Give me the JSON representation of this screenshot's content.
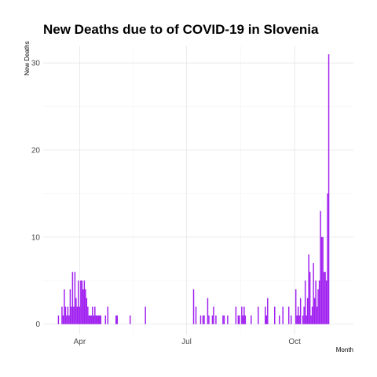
{
  "chart_data": {
    "type": "bar",
    "title": "New Deaths due to of COVID-19 in Slovenia",
    "xlabel": "Month",
    "ylabel": "New Deaths",
    "x_axis": "date",
    "xlim": [
      "2020-03-01",
      "2020-11-20"
    ],
    "ylim": [
      -1.2,
      32
    ],
    "x_ticks": [
      {
        "date": "2020-04-01",
        "label": "Apr"
      },
      {
        "date": "2020-07-01",
        "label": "Jul"
      },
      {
        "date": "2020-10-01",
        "label": "Oct"
      }
    ],
    "y_ticks": [
      0,
      10,
      20,
      30
    ],
    "grid": true,
    "bar_color": "#a020f0",
    "series": [
      {
        "points": [
          [
            "2020-03-14",
            1
          ],
          [
            "2020-03-17",
            2
          ],
          [
            "2020-03-18",
            1
          ],
          [
            "2020-03-19",
            4
          ],
          [
            "2020-03-20",
            2
          ],
          [
            "2020-03-21",
            1
          ],
          [
            "2020-03-22",
            2
          ],
          [
            "2020-03-23",
            1
          ],
          [
            "2020-03-24",
            4
          ],
          [
            "2020-03-25",
            2
          ],
          [
            "2020-03-26",
            6
          ],
          [
            "2020-03-27",
            2
          ],
          [
            "2020-03-28",
            6
          ],
          [
            "2020-03-29",
            3
          ],
          [
            "2020-03-30",
            2
          ],
          [
            "2020-03-31",
            5
          ],
          [
            "2020-04-01",
            2
          ],
          [
            "2020-04-02",
            5
          ],
          [
            "2020-04-03",
            5
          ],
          [
            "2020-04-04",
            4
          ],
          [
            "2020-04-05",
            5
          ],
          [
            "2020-04-06",
            4
          ],
          [
            "2020-04-07",
            3
          ],
          [
            "2020-04-08",
            2
          ],
          [
            "2020-04-09",
            1
          ],
          [
            "2020-04-10",
            1
          ],
          [
            "2020-04-11",
            1
          ],
          [
            "2020-04-12",
            2
          ],
          [
            "2020-04-13",
            1
          ],
          [
            "2020-04-14",
            2
          ],
          [
            "2020-04-15",
            1
          ],
          [
            "2020-04-16",
            1
          ],
          [
            "2020-04-17",
            1
          ],
          [
            "2020-04-18",
            1
          ],
          [
            "2020-04-19",
            1
          ],
          [
            "2020-04-23",
            1
          ],
          [
            "2020-04-25",
            2
          ],
          [
            "2020-05-02",
            1
          ],
          [
            "2020-05-03",
            1
          ],
          [
            "2020-05-14",
            1
          ],
          [
            "2020-05-27",
            2
          ],
          [
            "2020-07-07",
            4
          ],
          [
            "2020-07-09",
            2
          ],
          [
            "2020-07-13",
            1
          ],
          [
            "2020-07-15",
            1
          ],
          [
            "2020-07-16",
            1
          ],
          [
            "2020-07-19",
            3
          ],
          [
            "2020-07-20",
            1
          ],
          [
            "2020-07-23",
            1
          ],
          [
            "2020-07-24",
            2
          ],
          [
            "2020-07-26",
            1
          ],
          [
            "2020-08-01",
            1
          ],
          [
            "2020-08-02",
            1
          ],
          [
            "2020-08-05",
            1
          ],
          [
            "2020-08-12",
            2
          ],
          [
            "2020-08-14",
            1
          ],
          [
            "2020-08-15",
            1
          ],
          [
            "2020-08-17",
            2
          ],
          [
            "2020-08-18",
            1
          ],
          [
            "2020-08-19",
            2
          ],
          [
            "2020-08-20",
            1
          ],
          [
            "2020-08-25",
            1
          ],
          [
            "2020-08-31",
            2
          ],
          [
            "2020-09-06",
            2
          ],
          [
            "2020-09-07",
            1
          ],
          [
            "2020-09-08",
            3
          ],
          [
            "2020-09-14",
            2
          ],
          [
            "2020-09-18",
            1
          ],
          [
            "2020-09-21",
            2
          ],
          [
            "2020-09-26",
            2
          ],
          [
            "2020-09-28",
            1
          ],
          [
            "2020-10-02",
            4
          ],
          [
            "2020-10-03",
            1
          ],
          [
            "2020-10-04",
            2
          ],
          [
            "2020-10-05",
            1
          ],
          [
            "2020-10-06",
            3
          ],
          [
            "2020-10-08",
            1
          ],
          [
            "2020-10-09",
            2
          ],
          [
            "2020-10-10",
            5
          ],
          [
            "2020-10-11",
            1
          ],
          [
            "2020-10-12",
            3
          ],
          [
            "2020-10-13",
            8
          ],
          [
            "2020-10-14",
            6
          ],
          [
            "2020-10-15",
            1
          ],
          [
            "2020-10-16",
            2
          ],
          [
            "2020-10-17",
            7
          ],
          [
            "2020-10-18",
            3
          ],
          [
            "2020-10-19",
            5
          ],
          [
            "2020-10-20",
            2
          ],
          [
            "2020-10-21",
            4
          ],
          [
            "2020-10-22",
            5
          ],
          [
            "2020-10-23",
            13
          ],
          [
            "2020-10-24",
            10
          ],
          [
            "2020-10-25",
            10
          ],
          [
            "2020-10-26",
            6
          ],
          [
            "2020-10-27",
            6
          ],
          [
            "2020-10-28",
            5
          ],
          [
            "2020-10-29",
            15
          ],
          [
            "2020-10-30",
            31
          ]
        ]
      }
    ]
  }
}
